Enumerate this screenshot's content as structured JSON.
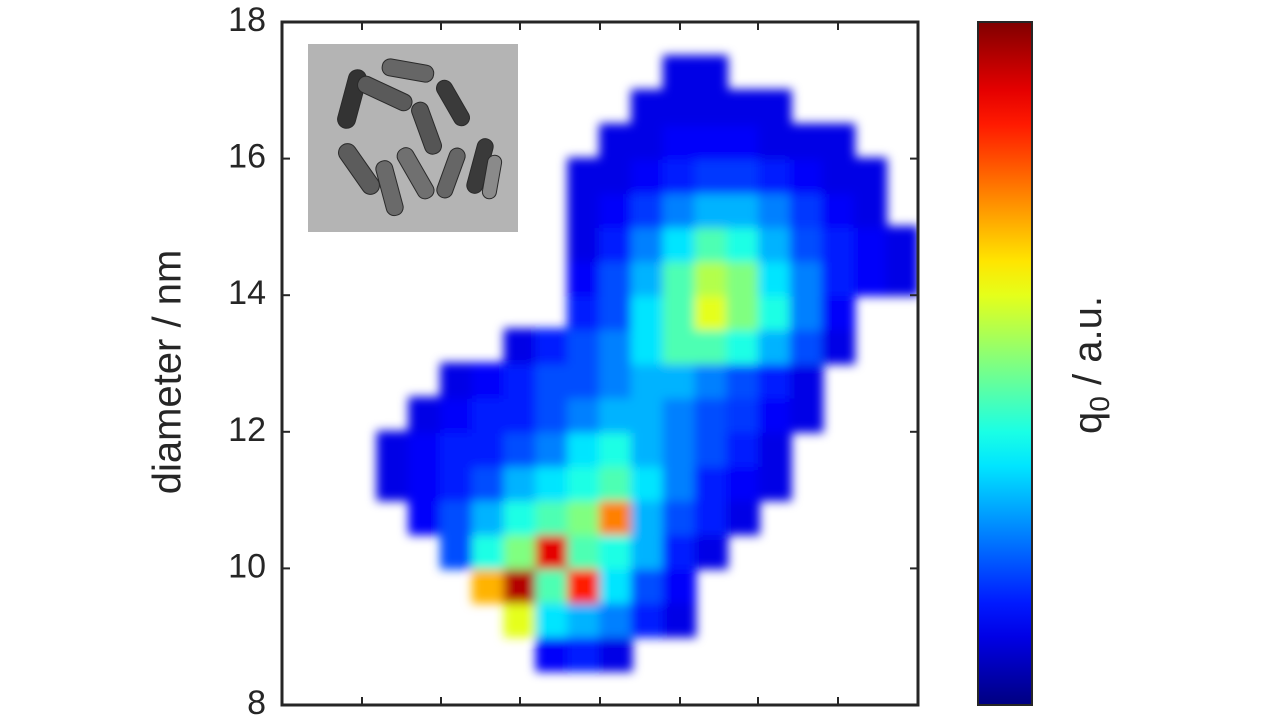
{
  "chart_data": {
    "type": "heatmap",
    "y_label": "diameter / nm",
    "colorbar_label": {
      "base": "q",
      "subscript": "0",
      "unit": " / a.u."
    },
    "colormap": "jet",
    "zlim": [
      0,
      1
    ],
    "ylim": [
      8,
      18
    ],
    "yticks": [
      8,
      10,
      12,
      14,
      16,
      18
    ],
    "y": [
      8.25,
      8.75,
      9.25,
      9.75,
      10.25,
      10.75,
      11.25,
      11.75,
      12.25,
      12.75,
      13.25,
      13.75,
      14.25,
      14.75,
      15.25,
      15.75,
      16.25,
      16.75,
      17.25,
      17.75
    ],
    "z": [
      [
        null,
        null,
        null,
        null,
        null,
        null,
        null,
        null,
        null,
        null,
        null,
        null,
        null,
        null,
        null,
        null,
        null,
        null,
        null,
        null
      ],
      [
        null,
        null,
        null,
        null,
        null,
        null,
        null,
        null,
        0.12,
        0.15,
        0.1,
        null,
        null,
        null,
        null,
        null,
        null,
        null,
        null,
        null
      ],
      [
        null,
        null,
        null,
        null,
        null,
        null,
        null,
        0.6,
        0.35,
        0.3,
        0.25,
        0.15,
        0.1,
        null,
        null,
        null,
        null,
        null,
        null,
        null
      ],
      [
        null,
        null,
        null,
        null,
        null,
        null,
        0.7,
        0.95,
        0.45,
        0.85,
        0.35,
        0.2,
        0.12,
        null,
        null,
        null,
        null,
        null,
        null,
        null
      ],
      [
        null,
        null,
        null,
        null,
        null,
        0.2,
        0.4,
        0.5,
        0.9,
        0.45,
        0.4,
        0.3,
        0.15,
        0.1,
        null,
        null,
        null,
        null,
        null,
        null
      ],
      [
        null,
        null,
        null,
        null,
        0.12,
        0.2,
        0.3,
        0.4,
        0.45,
        0.5,
        0.75,
        0.3,
        0.2,
        0.15,
        0.1,
        null,
        null,
        null,
        null,
        null
      ],
      [
        null,
        null,
        null,
        0.1,
        0.12,
        0.15,
        0.2,
        0.3,
        0.35,
        0.4,
        0.45,
        0.35,
        0.25,
        0.15,
        0.12,
        0.1,
        null,
        null,
        null,
        null
      ],
      [
        null,
        null,
        null,
        0.1,
        0.12,
        0.15,
        0.15,
        0.2,
        0.25,
        0.35,
        0.4,
        0.3,
        0.25,
        0.2,
        0.15,
        0.1,
        null,
        null,
        null,
        null
      ],
      [
        null,
        null,
        null,
        null,
        0.1,
        0.12,
        0.15,
        0.15,
        0.2,
        0.25,
        0.3,
        0.3,
        0.25,
        0.2,
        0.18,
        0.12,
        0.1,
        null,
        null,
        null
      ],
      [
        null,
        null,
        null,
        null,
        null,
        0.1,
        0.12,
        0.15,
        0.2,
        0.2,
        0.25,
        0.3,
        0.3,
        0.25,
        0.2,
        0.15,
        0.1,
        null,
        null,
        null
      ],
      [
        null,
        null,
        null,
        null,
        null,
        null,
        null,
        0.1,
        0.15,
        0.2,
        0.25,
        0.35,
        0.45,
        0.45,
        0.4,
        0.3,
        0.2,
        0.1,
        null,
        null
      ],
      [
        null,
        null,
        null,
        null,
        null,
        null,
        null,
        null,
        null,
        0.15,
        0.2,
        0.35,
        0.45,
        0.6,
        0.5,
        0.4,
        0.25,
        0.12,
        null,
        null
      ],
      [
        null,
        null,
        null,
        null,
        null,
        null,
        null,
        null,
        null,
        0.12,
        0.2,
        0.3,
        0.45,
        0.55,
        0.5,
        0.35,
        0.25,
        0.15,
        0.12,
        0.1
      ],
      [
        null,
        null,
        null,
        null,
        null,
        null,
        null,
        null,
        null,
        0.1,
        0.15,
        0.25,
        0.35,
        0.45,
        0.4,
        0.3,
        0.2,
        0.15,
        0.12,
        0.1
      ],
      [
        null,
        null,
        null,
        null,
        null,
        null,
        null,
        null,
        null,
        0.1,
        0.12,
        0.18,
        0.25,
        0.3,
        0.3,
        0.25,
        0.18,
        0.12,
        0.1,
        null
      ],
      [
        null,
        null,
        null,
        null,
        null,
        null,
        null,
        null,
        null,
        0.1,
        0.1,
        0.12,
        0.15,
        0.18,
        0.18,
        0.15,
        0.12,
        0.1,
        0.1,
        null
      ],
      [
        null,
        null,
        null,
        null,
        null,
        null,
        null,
        null,
        null,
        null,
        0.1,
        0.1,
        0.12,
        0.12,
        0.12,
        0.1,
        0.1,
        0.1,
        null,
        null
      ],
      [
        null,
        null,
        null,
        null,
        null,
        null,
        null,
        null,
        null,
        null,
        null,
        0.1,
        0.1,
        0.1,
        0.1,
        0.1,
        null,
        null,
        null,
        null
      ],
      [
        null,
        null,
        null,
        null,
        null,
        null,
        null,
        null,
        null,
        null,
        null,
        null,
        0.1,
        0.1,
        null,
        null,
        null,
        null,
        null,
        null
      ],
      [
        null,
        null,
        null,
        null,
        null,
        null,
        null,
        null,
        null,
        null,
        null,
        null,
        null,
        null,
        null,
        null,
        null,
        null,
        null,
        null
      ]
    ]
  }
}
